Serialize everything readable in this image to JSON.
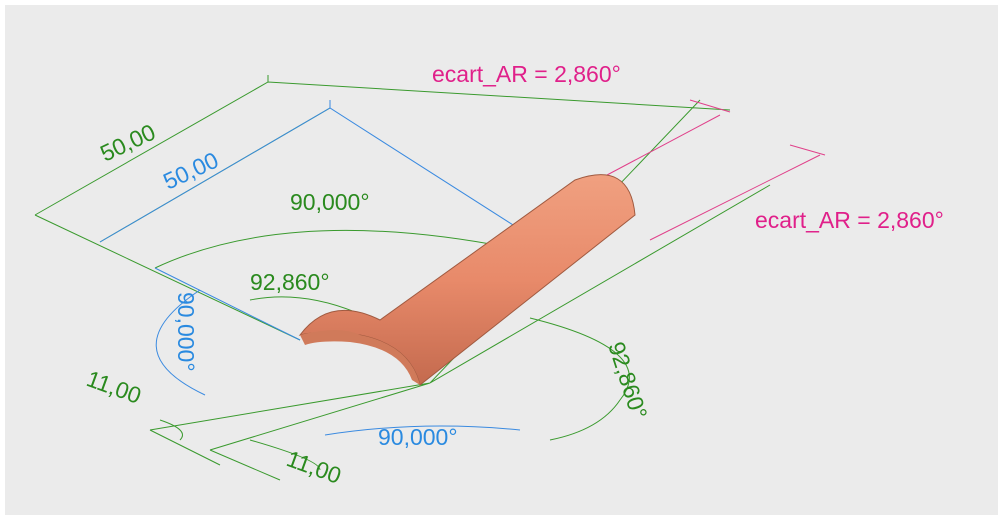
{
  "labels": [
    "ecart_AR = 2,860°",
    "ecart_AR = 2,860°",
    "50,00",
    "50,00",
    "90,000°",
    "92,860°",
    "90,000°",
    "11,00",
    "11,00",
    "90,000°",
    "92,860°"
  ]
}
